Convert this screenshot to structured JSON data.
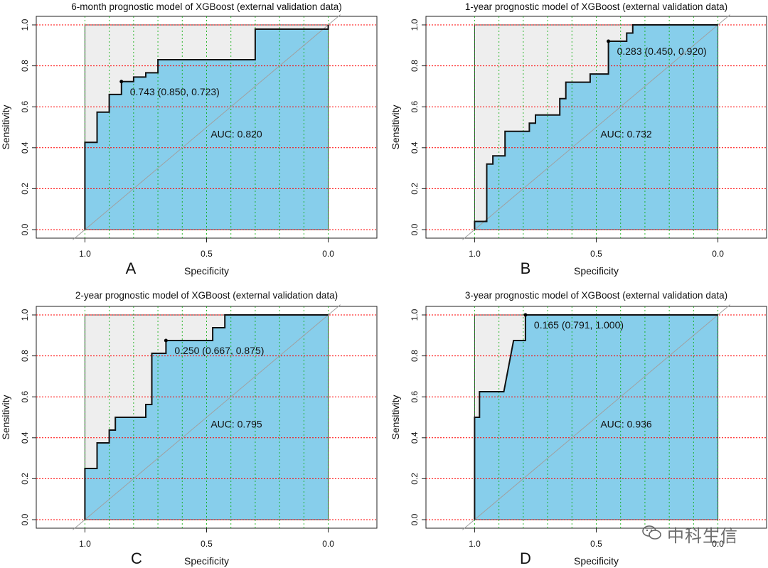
{
  "figure": {
    "watermark": "中科生信"
  },
  "colors": {
    "auc_fill": "#87CEEB",
    "upper_fill": "#EEEEEE",
    "ref_grid": "#FF0000",
    "tick_grid": "#00AA00",
    "diagonal": "#A0A0A0"
  },
  "chart_data": [
    {
      "type": "line",
      "panel_letter": "A",
      "title": "6-month prognostic model of XGBoost (external validation data)",
      "xlabel": "Specificity",
      "ylabel": "Sensitivity",
      "x_reversed": true,
      "xlim": [
        1.2,
        -0.2
      ],
      "ylim": [
        0,
        1
      ],
      "x_ticks": [
        1.0,
        0.5,
        0.0
      ],
      "x_tick_labels": [
        "1.0",
        "0.5",
        "0.0"
      ],
      "y_ticks": [
        0,
        0.2,
        0.4,
        0.6,
        0.8,
        1.0
      ],
      "y_tick_labels": [
        "0.0",
        "0.2",
        "0.4",
        "0.6",
        "0.8",
        "1.0"
      ],
      "grid": true,
      "auc_label": "AUC: 0.820",
      "threshold_label": "0.743 (0.850, 0.723)",
      "best_point": {
        "specificity": 0.85,
        "sensitivity": 0.723
      },
      "roc": [
        {
          "specificity": 1.0,
          "sensitivity": 0.0
        },
        {
          "specificity": 1.0,
          "sensitivity": 0.426
        },
        {
          "specificity": 0.95,
          "sensitivity": 0.426
        },
        {
          "specificity": 0.95,
          "sensitivity": 0.574
        },
        {
          "specificity": 0.9,
          "sensitivity": 0.574
        },
        {
          "specificity": 0.9,
          "sensitivity": 0.66
        },
        {
          "specificity": 0.85,
          "sensitivity": 0.66
        },
        {
          "specificity": 0.85,
          "sensitivity": 0.723
        },
        {
          "specificity": 0.8,
          "sensitivity": 0.723
        },
        {
          "specificity": 0.8,
          "sensitivity": 0.745
        },
        {
          "specificity": 0.75,
          "sensitivity": 0.745
        },
        {
          "specificity": 0.75,
          "sensitivity": 0.766
        },
        {
          "specificity": 0.7,
          "sensitivity": 0.766
        },
        {
          "specificity": 0.7,
          "sensitivity": 0.83
        },
        {
          "specificity": 0.3,
          "sensitivity": 0.83
        },
        {
          "specificity": 0.3,
          "sensitivity": 0.979
        },
        {
          "specificity": 0.0,
          "sensitivity": 0.979
        },
        {
          "specificity": 0.0,
          "sensitivity": 1.0
        }
      ]
    },
    {
      "type": "line",
      "panel_letter": "B",
      "title": "1-year prognostic model of XGBoost (external validation data)",
      "xlabel": "Specificity",
      "ylabel": "Sensitivity",
      "x_reversed": true,
      "xlim": [
        1.2,
        -0.2
      ],
      "ylim": [
        0,
        1
      ],
      "x_ticks": [
        1.0,
        0.5,
        0.0
      ],
      "x_tick_labels": [
        "1.0",
        "0.5",
        "0.0"
      ],
      "y_ticks": [
        0,
        0.2,
        0.4,
        0.6,
        0.8,
        1.0
      ],
      "y_tick_labels": [
        "0.0",
        "0.2",
        "0.4",
        "0.6",
        "0.8",
        "1.0"
      ],
      "grid": true,
      "auc_label": "AUC: 0.732",
      "threshold_label": "0.283 (0.450, 0.920)",
      "best_point": {
        "specificity": 0.45,
        "sensitivity": 0.92
      },
      "roc": [
        {
          "specificity": 1.0,
          "sensitivity": 0.0
        },
        {
          "specificity": 1.0,
          "sensitivity": 0.04
        },
        {
          "specificity": 0.95,
          "sensitivity": 0.04
        },
        {
          "specificity": 0.95,
          "sensitivity": 0.32
        },
        {
          "specificity": 0.925,
          "sensitivity": 0.32
        },
        {
          "specificity": 0.925,
          "sensitivity": 0.36
        },
        {
          "specificity": 0.875,
          "sensitivity": 0.36
        },
        {
          "specificity": 0.875,
          "sensitivity": 0.48
        },
        {
          "specificity": 0.775,
          "sensitivity": 0.48
        },
        {
          "specificity": 0.775,
          "sensitivity": 0.52
        },
        {
          "specificity": 0.75,
          "sensitivity": 0.52
        },
        {
          "specificity": 0.75,
          "sensitivity": 0.56
        },
        {
          "specificity": 0.65,
          "sensitivity": 0.56
        },
        {
          "specificity": 0.65,
          "sensitivity": 0.64
        },
        {
          "specificity": 0.625,
          "sensitivity": 0.64
        },
        {
          "specificity": 0.625,
          "sensitivity": 0.72
        },
        {
          "specificity": 0.525,
          "sensitivity": 0.72
        },
        {
          "specificity": 0.525,
          "sensitivity": 0.76
        },
        {
          "specificity": 0.45,
          "sensitivity": 0.76
        },
        {
          "specificity": 0.45,
          "sensitivity": 0.92
        },
        {
          "specificity": 0.375,
          "sensitivity": 0.92
        },
        {
          "specificity": 0.375,
          "sensitivity": 0.96
        },
        {
          "specificity": 0.35,
          "sensitivity": 0.96
        },
        {
          "specificity": 0.35,
          "sensitivity": 1.0
        },
        {
          "specificity": 0.0,
          "sensitivity": 1.0
        }
      ]
    },
    {
      "type": "line",
      "panel_letter": "C",
      "title": "2-year prognostic model of XGBoost (external validation data)",
      "xlabel": "Specificity",
      "ylabel": "Sensitivity",
      "x_reversed": true,
      "xlim": [
        1.2,
        -0.2
      ],
      "ylim": [
        0,
        1
      ],
      "x_ticks": [
        1.0,
        0.5,
        0.0
      ],
      "x_tick_labels": [
        "1.0",
        "0.5",
        "0.0"
      ],
      "y_ticks": [
        0,
        0.2,
        0.4,
        0.6,
        0.8,
        1.0
      ],
      "y_tick_labels": [
        "0.0",
        "0.2",
        "0.4",
        "0.6",
        "0.8",
        "1.0"
      ],
      "grid": true,
      "auc_label": "AUC: 0.795",
      "threshold_label": "0.250 (0.667, 0.875)",
      "best_point": {
        "specificity": 0.667,
        "sensitivity": 0.875
      },
      "roc": [
        {
          "specificity": 1.0,
          "sensitivity": 0.0
        },
        {
          "specificity": 1.0,
          "sensitivity": 0.25
        },
        {
          "specificity": 0.95,
          "sensitivity": 0.25
        },
        {
          "specificity": 0.95,
          "sensitivity": 0.375
        },
        {
          "specificity": 0.9,
          "sensitivity": 0.375
        },
        {
          "specificity": 0.9,
          "sensitivity": 0.4375
        },
        {
          "specificity": 0.875,
          "sensitivity": 0.4375
        },
        {
          "specificity": 0.875,
          "sensitivity": 0.5
        },
        {
          "specificity": 0.75,
          "sensitivity": 0.5
        },
        {
          "specificity": 0.75,
          "sensitivity": 0.5625
        },
        {
          "specificity": 0.725,
          "sensitivity": 0.5625
        },
        {
          "specificity": 0.725,
          "sensitivity": 0.8125
        },
        {
          "specificity": 0.667,
          "sensitivity": 0.8125
        },
        {
          "specificity": 0.667,
          "sensitivity": 0.875
        },
        {
          "specificity": 0.475,
          "sensitivity": 0.875
        },
        {
          "specificity": 0.475,
          "sensitivity": 0.9375
        },
        {
          "specificity": 0.425,
          "sensitivity": 0.9375
        },
        {
          "specificity": 0.425,
          "sensitivity": 1.0
        },
        {
          "specificity": 0.0,
          "sensitivity": 1.0
        }
      ]
    },
    {
      "type": "line",
      "panel_letter": "D",
      "title": "3-year prognostic model of XGBoost (external validation data)",
      "xlabel": "Specificity",
      "ylabel": "Sensitivity",
      "x_reversed": true,
      "xlim": [
        1.2,
        -0.2
      ],
      "ylim": [
        0,
        1
      ],
      "x_ticks": [
        1.0,
        0.5,
        0.0
      ],
      "x_tick_labels": [
        "1.0",
        "0.5",
        "0.0"
      ],
      "y_ticks": [
        0,
        0.2,
        0.4,
        0.6,
        0.8,
        1.0
      ],
      "y_tick_labels": [
        "0.0",
        "0.2",
        "0.4",
        "0.6",
        "0.8",
        "1.0"
      ],
      "grid": true,
      "auc_label": "AUC: 0.936",
      "threshold_label": "0.165 (0.791, 1.000)",
      "best_point": {
        "specificity": 0.791,
        "sensitivity": 1.0
      },
      "roc": [
        {
          "specificity": 1.0,
          "sensitivity": 0.0
        },
        {
          "specificity": 1.0,
          "sensitivity": 0.5
        },
        {
          "specificity": 0.98,
          "sensitivity": 0.5
        },
        {
          "specificity": 0.98,
          "sensitivity": 0.625
        },
        {
          "specificity": 0.88,
          "sensitivity": 0.625
        },
        {
          "specificity": 0.84,
          "sensitivity": 0.875
        },
        {
          "specificity": 0.791,
          "sensitivity": 0.875
        },
        {
          "specificity": 0.791,
          "sensitivity": 1.0
        },
        {
          "specificity": 0.0,
          "sensitivity": 1.0
        }
      ]
    }
  ]
}
